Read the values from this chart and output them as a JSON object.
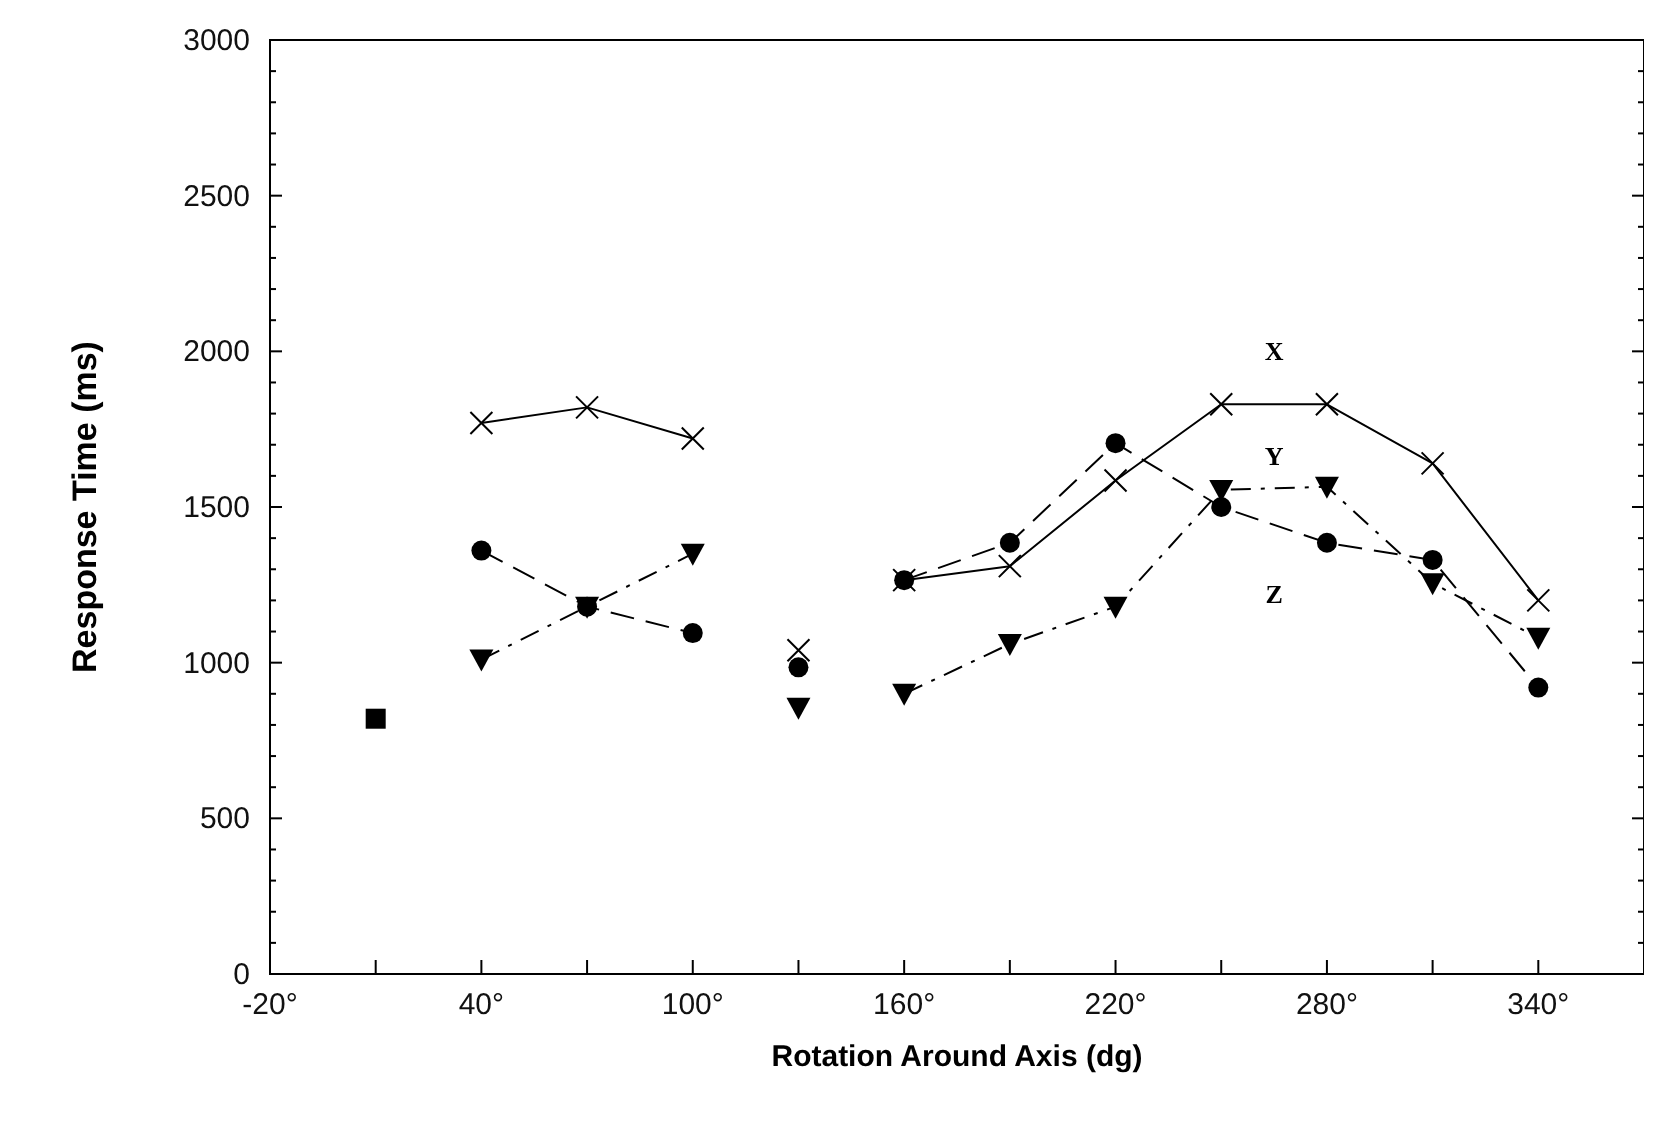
{
  "chart_data": {
    "type": "line",
    "xlabel": "Rotation Around Axis (dg)",
    "ylabel": "Response Time (ms)",
    "xlim": [
      -20,
      370
    ],
    "xticks": [
      {
        "value": -20,
        "label": "-20°"
      },
      {
        "value": 10,
        "label": null
      },
      {
        "value": 40,
        "label": "40°"
      },
      {
        "value": 70,
        "label": null
      },
      {
        "value": 100,
        "label": "100°"
      },
      {
        "value": 130,
        "label": null
      },
      {
        "value": 160,
        "label": "160°"
      },
      {
        "value": 190,
        "label": null
      },
      {
        "value": 220,
        "label": "220°"
      },
      {
        "value": 250,
        "label": null
      },
      {
        "value": 280,
        "label": "280°"
      },
      {
        "value": 310,
        "label": null
      },
      {
        "value": 340,
        "label": "340°"
      }
    ],
    "ylim": [
      0,
      3000
    ],
    "yticks": [
      0,
      {
        "value": 100,
        "label": null
      },
      {
        "value": 200,
        "label": null
      },
      {
        "value": 300,
        "label": null
      },
      {
        "value": 400,
        "label": null
      },
      500,
      {
        "value": 600,
        "label": null
      },
      {
        "value": 700,
        "label": null
      },
      {
        "value": 800,
        "label": null
      },
      {
        "value": 900,
        "label": null
      },
      1000,
      {
        "value": 1100,
        "label": null
      },
      {
        "value": 1200,
        "label": null
      },
      {
        "value": 1300,
        "label": null
      },
      {
        "value": 1400,
        "label": null
      },
      1500,
      {
        "value": 1600,
        "label": null
      },
      {
        "value": 1700,
        "label": null
      },
      {
        "value": 1800,
        "label": null
      },
      {
        "value": 1900,
        "label": null
      },
      2000,
      {
        "value": 2100,
        "label": null
      },
      {
        "value": 2200,
        "label": null
      },
      {
        "value": 2300,
        "label": null
      },
      {
        "value": 2400,
        "label": null
      },
      2500,
      {
        "value": 2600,
        "label": null
      },
      {
        "value": 2700,
        "label": null
      },
      {
        "value": 2800,
        "label": null
      },
      {
        "value": 2900,
        "label": null
      },
      3000
    ],
    "grid": false,
    "series": [
      {
        "name": "X",
        "color": "#000000",
        "marker": "cross",
        "line_style": "solid",
        "x": [
          40,
          70,
          100,
          130,
          160,
          190,
          220,
          250,
          280,
          310,
          340
        ],
        "values": [
          1770,
          1820,
          1720,
          null,
          1265,
          1310,
          1585,
          1830,
          1830,
          1640,
          1200
        ]
      },
      {
        "name": "Y",
        "color": "#000000",
        "marker": "triangle",
        "line_style": "dotted",
        "x": [
          40,
          70,
          100,
          130,
          160,
          190,
          220,
          250,
          280,
          310,
          340
        ],
        "values": [
          1010,
          1180,
          1350,
          null,
          900,
          1060,
          1180,
          1555,
          1565,
          1255,
          1080
        ]
      },
      {
        "name": "Z",
        "color": "#000000",
        "marker": "circle",
        "line_style": "dashed",
        "x": [
          40,
          70,
          100,
          130,
          160,
          190,
          220,
          250,
          280,
          310,
          340
        ],
        "values": [
          1360,
          1180,
          1095,
          null,
          1265,
          1385,
          1705,
          1500,
          1385,
          1330,
          920
        ]
      },
      {
        "type": "scatter",
        "color": "#000000",
        "marker": "square",
        "x": [
          10
        ],
        "values": [
          820
        ]
      },
      {
        "type": "scatter",
        "color": "#000000",
        "marker": "cross",
        "x": [
          130
        ],
        "values": [
          1040
        ]
      },
      {
        "type": "scatter",
        "color": "#000000",
        "marker": "circle",
        "x": [
          130
        ],
        "values": [
          985
        ]
      },
      {
        "type": "scatter",
        "color": "#000000",
        "marker": "triangle",
        "x": [
          130
        ],
        "values": [
          855
        ]
      }
    ]
  }
}
